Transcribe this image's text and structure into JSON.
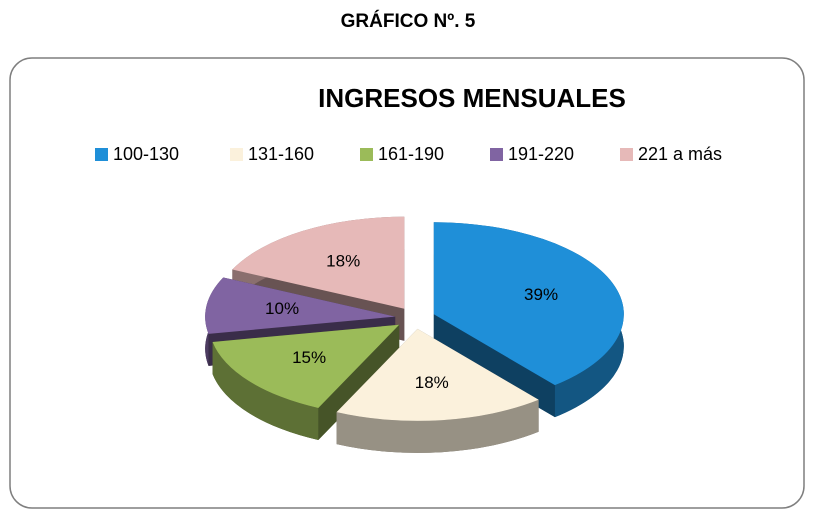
{
  "heading": "GRÁFICO Nº. 5",
  "chart_data": {
    "type": "pie",
    "title": "INGRESOS MENSUALES",
    "categories": [
      "100-130",
      "131-160",
      "161-190",
      "191-220",
      "221 a más"
    ],
    "values": [
      39,
      18,
      15,
      10,
      18
    ],
    "value_labels": [
      "39%",
      "18%",
      "15%",
      "10%",
      "18%"
    ],
    "colors": [
      "#1f8fd8",
      "#fbf1dc",
      "#9bbb59",
      "#8064a2",
      "#e6b9b8"
    ],
    "legend": "top"
  }
}
